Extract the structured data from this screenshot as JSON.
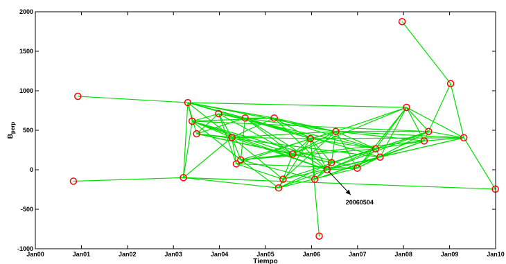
{
  "chart_data": {
    "type": "scatter",
    "xlabel": "Tiempo",
    "ylabel_main": "B",
    "ylabel_sub": "perp",
    "xlim": [
      "Jan00",
      "Jan10"
    ],
    "ylim": [
      -1000,
      2000
    ],
    "x_ticks": [
      "Jan00",
      "Jan01",
      "Jan02",
      "Jan03",
      "Jan04",
      "Jan05",
      "Jan06",
      "Jan07",
      "Jan08",
      "Jan09",
      "Jan10"
    ],
    "y_ticks": [
      "-1000",
      "-500",
      "0",
      "500",
      "1000",
      "1500",
      "2000"
    ],
    "colors": {
      "edges": "#00dd00",
      "markers": "#ff0000",
      "axes": "#000000"
    },
    "points": [
      {
        "date": "2000-10-29",
        "bperp": -145
      },
      {
        "date": "2000-12-03",
        "bperp": 930
      },
      {
        "date": "2003-03-21",
        "bperp": -100
      },
      {
        "date": "2003-04-25",
        "bperp": 850
      },
      {
        "date": "2003-05-30",
        "bperp": 615
      },
      {
        "date": "2003-07-04",
        "bperp": 455
      },
      {
        "date": "2003-12-26",
        "bperp": 710
      },
      {
        "date": "2004-04-09",
        "bperp": 410
      },
      {
        "date": "2004-05-14",
        "bperp": 75
      },
      {
        "date": "2004-06-18",
        "bperp": 125
      },
      {
        "date": "2004-07-23",
        "bperp": 655
      },
      {
        "date": "2005-03-11",
        "bperp": 655
      },
      {
        "date": "2005-04-15",
        "bperp": -230
      },
      {
        "date": "2005-05-20",
        "bperp": -120
      },
      {
        "date": "2005-08-05",
        "bperp": 200
      },
      {
        "date": "2005-12-23",
        "bperp": 395
      },
      {
        "date": "2006-01-27",
        "bperp": -120
      },
      {
        "date": "2006-03-03",
        "bperp": -840
      },
      {
        "date": "2006-05-04",
        "bperp": 0
      },
      {
        "date": "2006-06-08",
        "bperp": 90
      },
      {
        "date": "2006-07-13",
        "bperp": 485
      },
      {
        "date": "2006-12-30",
        "bperp": 20
      },
      {
        "date": "2007-05-25",
        "bperp": 265
      },
      {
        "date": "2007-06-29",
        "bperp": 160
      },
      {
        "date": "2007-12-21",
        "bperp": 1875
      },
      {
        "date": "2008-01-25",
        "bperp": 790
      },
      {
        "date": "2008-06-13",
        "bperp": 365
      },
      {
        "date": "2008-07-18",
        "bperp": 485
      },
      {
        "date": "2009-01-09",
        "bperp": 1090
      },
      {
        "date": "2009-04-24",
        "bperp": 405
      },
      {
        "date": "2009-12-30",
        "bperp": -245
      }
    ],
    "edges": [
      [
        0,
        2
      ],
      [
        1,
        3
      ],
      [
        2,
        3
      ],
      [
        2,
        4
      ],
      [
        2,
        7
      ],
      [
        2,
        12
      ],
      [
        2,
        30
      ],
      [
        3,
        4
      ],
      [
        3,
        5
      ],
      [
        3,
        7
      ],
      [
        3,
        10
      ],
      [
        3,
        11
      ],
      [
        3,
        15
      ],
      [
        3,
        20
      ],
      [
        3,
        25
      ],
      [
        4,
        6
      ],
      [
        4,
        7
      ],
      [
        4,
        9
      ],
      [
        4,
        11
      ],
      [
        4,
        14
      ],
      [
        4,
        18
      ],
      [
        4,
        21
      ],
      [
        4,
        27
      ],
      [
        5,
        6
      ],
      [
        5,
        7
      ],
      [
        5,
        10
      ],
      [
        5,
        14
      ],
      [
        5,
        19
      ],
      [
        5,
        23
      ],
      [
        6,
        7
      ],
      [
        6,
        8
      ],
      [
        6,
        10
      ],
      [
        6,
        14
      ],
      [
        6,
        22
      ],
      [
        7,
        8
      ],
      [
        7,
        9
      ],
      [
        7,
        11
      ],
      [
        7,
        13
      ],
      [
        7,
        15
      ],
      [
        7,
        18
      ],
      [
        7,
        20
      ],
      [
        8,
        13
      ],
      [
        8,
        15
      ],
      [
        8,
        21
      ],
      [
        9,
        10
      ],
      [
        9,
        12
      ],
      [
        9,
        14
      ],
      [
        9,
        16
      ],
      [
        9,
        20
      ],
      [
        9,
        22
      ],
      [
        9,
        26
      ],
      [
        10,
        11
      ],
      [
        10,
        14
      ],
      [
        10,
        15
      ],
      [
        10,
        18
      ],
      [
        10,
        20
      ],
      [
        10,
        23
      ],
      [
        11,
        15
      ],
      [
        11,
        18
      ],
      [
        11,
        20
      ],
      [
        11,
        22
      ],
      [
        12,
        13
      ],
      [
        12,
        15
      ],
      [
        12,
        19
      ],
      [
        12,
        21
      ],
      [
        12,
        27
      ],
      [
        13,
        14
      ],
      [
        13,
        20
      ],
      [
        13,
        22
      ],
      [
        13,
        29
      ],
      [
        14,
        15
      ],
      [
        14,
        19
      ],
      [
        14,
        20
      ],
      [
        14,
        25
      ],
      [
        15,
        16
      ],
      [
        15,
        17
      ],
      [
        15,
        18
      ],
      [
        15,
        19
      ],
      [
        15,
        20
      ],
      [
        15,
        22
      ],
      [
        15,
        29
      ],
      [
        16,
        18
      ],
      [
        16,
        19
      ],
      [
        16,
        23
      ],
      [
        16,
        26
      ],
      [
        18,
        19
      ],
      [
        18,
        21
      ],
      [
        18,
        22
      ],
      [
        18,
        23
      ],
      [
        19,
        20
      ],
      [
        19,
        27
      ],
      [
        20,
        21
      ],
      [
        20,
        22
      ],
      [
        20,
        25
      ],
      [
        20,
        26
      ],
      [
        20,
        27
      ],
      [
        20,
        29
      ],
      [
        21,
        22
      ],
      [
        21,
        23
      ],
      [
        21,
        25
      ],
      [
        21,
        27
      ],
      [
        22,
        23
      ],
      [
        22,
        25
      ],
      [
        22,
        26
      ],
      [
        22,
        27
      ],
      [
        23,
        25
      ],
      [
        23,
        26
      ],
      [
        23,
        29
      ],
      [
        24,
        28
      ],
      [
        25,
        26
      ],
      [
        25,
        27
      ],
      [
        25,
        29
      ],
      [
        26,
        27
      ],
      [
        26,
        29
      ],
      [
        27,
        28
      ],
      [
        27,
        29
      ],
      [
        28,
        29
      ],
      [
        29,
        30
      ]
    ],
    "annotation": {
      "label": "20060504",
      "point_index": 18
    }
  }
}
